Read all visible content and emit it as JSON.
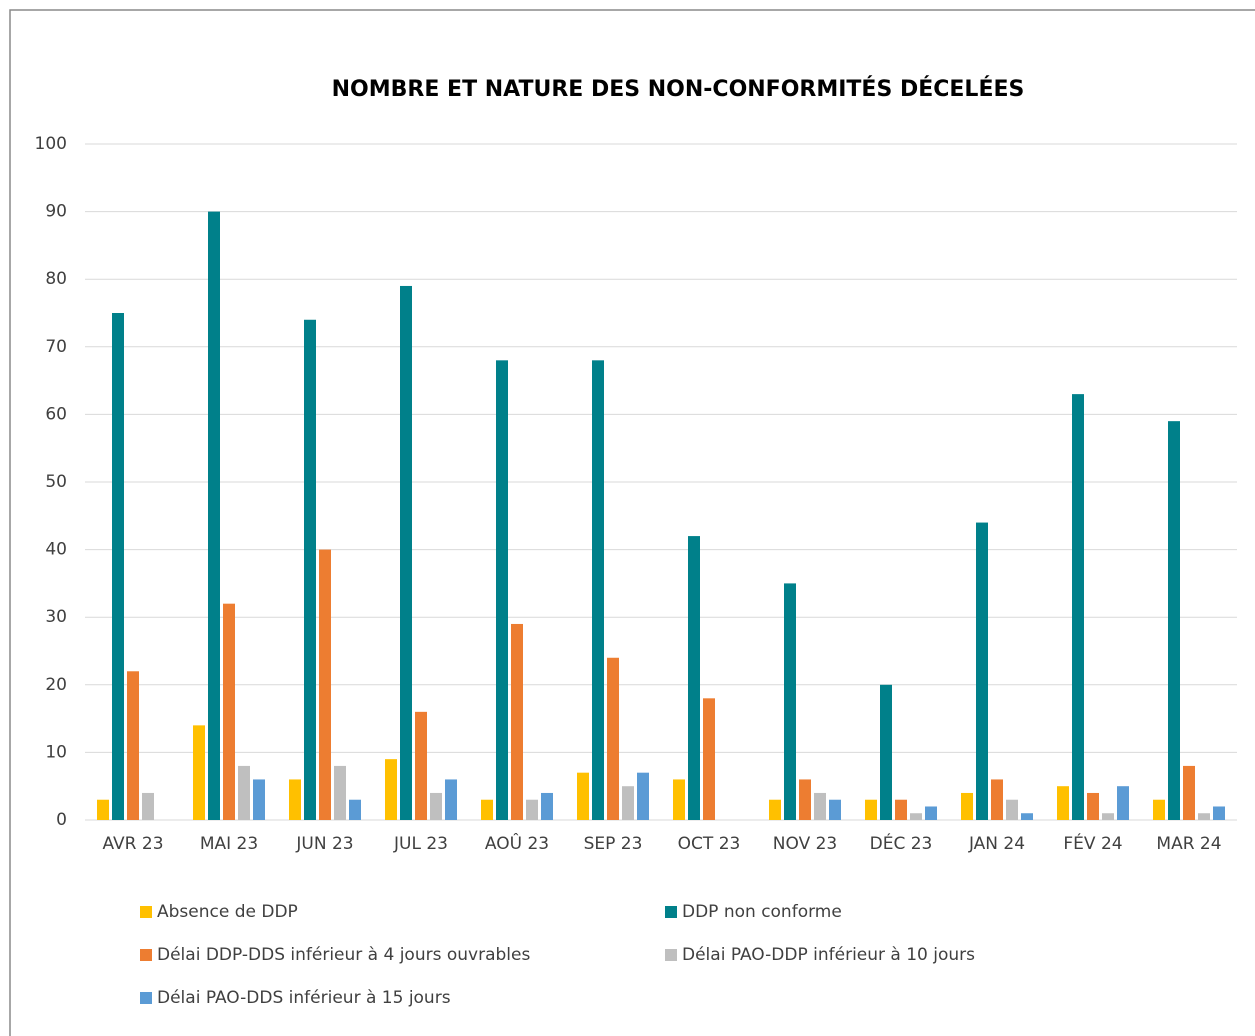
{
  "chart_data": {
    "type": "bar",
    "title": "NOMBRE ET NATURE DES NON-CONFORMITÉS DÉCELÉES",
    "categories": [
      "AVR 23",
      "MAI 23",
      "JUN 23",
      "JUL 23",
      "AOÛ 23",
      "SEP 23",
      "OCT 23",
      "NOV 23",
      "DÉC 23",
      "JAN 24",
      "FÉV 24",
      "MAR 24"
    ],
    "series": [
      {
        "name": "Absence de DDP",
        "color": "#FFC000",
        "values": [
          3,
          14,
          6,
          9,
          3,
          7,
          6,
          3,
          3,
          4,
          5,
          3
        ]
      },
      {
        "name": "DDP non conforme",
        "color": "#00808A",
        "values": [
          75,
          90,
          74,
          79,
          68,
          68,
          42,
          35,
          20,
          44,
          63,
          59
        ]
      },
      {
        "name": "Délai DDP-DDS inférieur à 4 jours ouvrables",
        "color": "#ED7D31",
        "values": [
          22,
          32,
          40,
          16,
          29,
          24,
          18,
          6,
          3,
          6,
          4,
          8
        ]
      },
      {
        "name": "Délai PAO-DDP inférieur à 10 jours",
        "color": "#BFBFBF",
        "values": [
          4,
          8,
          8,
          4,
          3,
          5,
          0,
          4,
          1,
          3,
          1,
          1
        ]
      },
      {
        "name": "Délai PAO-DDS inférieur à 15 jours",
        "color": "#5B9BD5",
        "values": [
          0,
          6,
          3,
          6,
          4,
          7,
          0,
          3,
          2,
          1,
          5,
          2
        ]
      }
    ],
    "ylim": [
      0,
      100
    ],
    "yticks": [
      0,
      10,
      20,
      30,
      40,
      50,
      60,
      70,
      80,
      90,
      100
    ],
    "grid": true,
    "legend": "bottom"
  }
}
